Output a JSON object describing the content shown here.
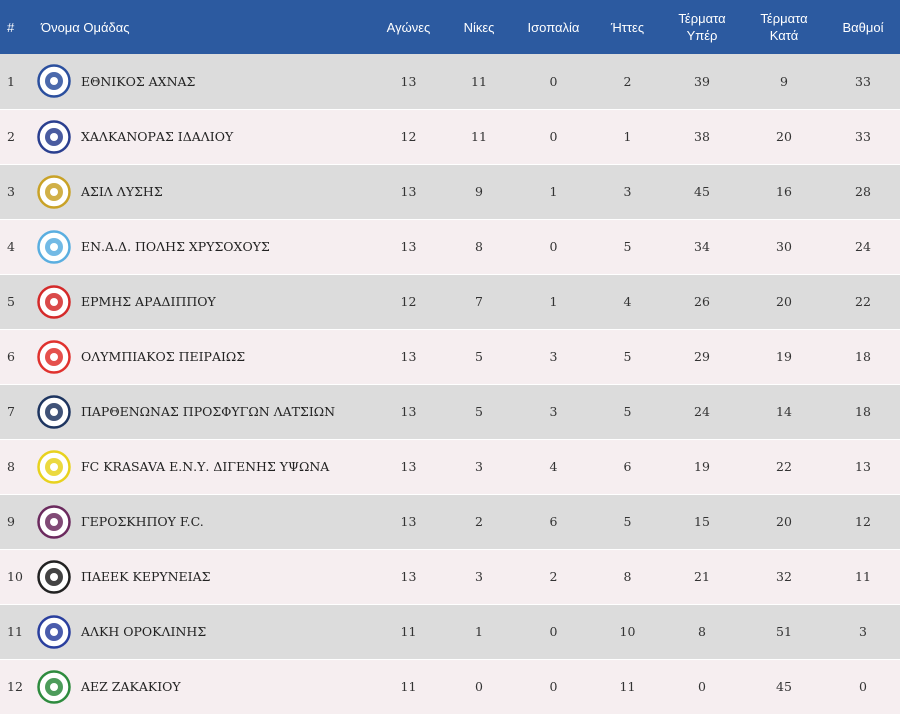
{
  "header": {
    "num": "#",
    "team": "Όνομα Ομάδας",
    "played": "Αγώνες",
    "wins": "Νίκες",
    "draws": "Ισοπαλία",
    "losses": "Ήττες",
    "gf": "Τέρματα Υπέρ",
    "ga": "Τέρματα Κατά",
    "points": "Βαθμοί"
  },
  "rows": [
    {
      "pos": "1",
      "name": "ΕΘΝΙΚΟΣ ΑΧΝΑΣ",
      "played": "13",
      "wins": "11",
      "draws": "0",
      "losses": "2",
      "gf": "39",
      "ga": "9",
      "points": "33",
      "logo_color": "#2b4f9e"
    },
    {
      "pos": "2",
      "name": "ΧΑΛΚΑΝΟΡΑΣ ΙΔΑΛΙΟΥ",
      "played": "12",
      "wins": "11",
      "draws": "0",
      "losses": "1",
      "gf": "38",
      "ga": "20",
      "points": "33",
      "logo_color": "#2a3f8f"
    },
    {
      "pos": "3",
      "name": "ΑΣΙΛ ΛΥΣΗΣ",
      "played": "13",
      "wins": "9",
      "draws": "1",
      "losses": "3",
      "gf": "45",
      "ga": "16",
      "points": "28",
      "logo_color": "#c9a227"
    },
    {
      "pos": "4",
      "name": "ΕΝ.Α.Δ. ΠΟΛΗΣ ΧΡΥΣΟΧΟΥΣ",
      "played": "13",
      "wins": "8",
      "draws": "0",
      "losses": "5",
      "gf": "34",
      "ga": "30",
      "points": "24",
      "logo_color": "#5aaee0"
    },
    {
      "pos": "5",
      "name": "ΕΡΜΗΣ ΑΡΑΔΙΠΠΟΥ",
      "played": "12",
      "wins": "7",
      "draws": "1",
      "losses": "4",
      "gf": "26",
      "ga": "20",
      "points": "22",
      "logo_color": "#d42a2a"
    },
    {
      "pos": "6",
      "name": "ΟΛΥΜΠΙΑΚΟΣ ΠΕΙΡΑΙΩΣ",
      "played": "13",
      "wins": "5",
      "draws": "3",
      "losses": "5",
      "gf": "29",
      "ga": "19",
      "points": "18",
      "logo_color": "#e0322e"
    },
    {
      "pos": "7",
      "name": "ΠΑΡΘΕΝΩΝΑΣ ΠΡΟΣΦΥΓΩΝ ΛΑΤΣΙΩΝ",
      "played": "13",
      "wins": "5",
      "draws": "3",
      "losses": "5",
      "gf": "24",
      "ga": "14",
      "points": "18",
      "logo_color": "#1e3560"
    },
    {
      "pos": "8",
      "name": "FC KRASAVA Ε.Ν.Υ. ΔΙΓΕΝΗΣ ΥΨΩΝΑ",
      "played": "13",
      "wins": "3",
      "draws": "4",
      "losses": "6",
      "gf": "19",
      "ga": "22",
      "points": "13",
      "logo_color": "#e8d21e"
    },
    {
      "pos": "9",
      "name": "ΓΕΡΟΣΚΗΠΟΥ F.C.",
      "played": "13",
      "wins": "2",
      "draws": "6",
      "losses": "5",
      "gf": "15",
      "ga": "20",
      "points": "12",
      "logo_color": "#6b2a5e"
    },
    {
      "pos": "10",
      "name": "ΠΑΕΕΚ ΚΕΡΥΝΕΙΑΣ",
      "played": "13",
      "wins": "3",
      "draws": "2",
      "losses": "8",
      "gf": "21",
      "ga": "32",
      "points": "11",
      "logo_color": "#222222"
    },
    {
      "pos": "11",
      "name": "ΑΛΚΗ ΟΡΟΚΛΙΝΗΣ",
      "played": "11",
      "wins": "1",
      "draws": "0",
      "losses": "10",
      "gf": "8",
      "ga": "51",
      "points": "3",
      "logo_color": "#2a3f9e"
    },
    {
      "pos": "12",
      "name": "ΑΕΖ ΖΑΚΑΚΙΟΥ",
      "played": "11",
      "wins": "0",
      "draws": "0",
      "losses": "11",
      "gf": "0",
      "ga": "45",
      "points": "0",
      "logo_color": "#2e8b3e"
    }
  ]
}
